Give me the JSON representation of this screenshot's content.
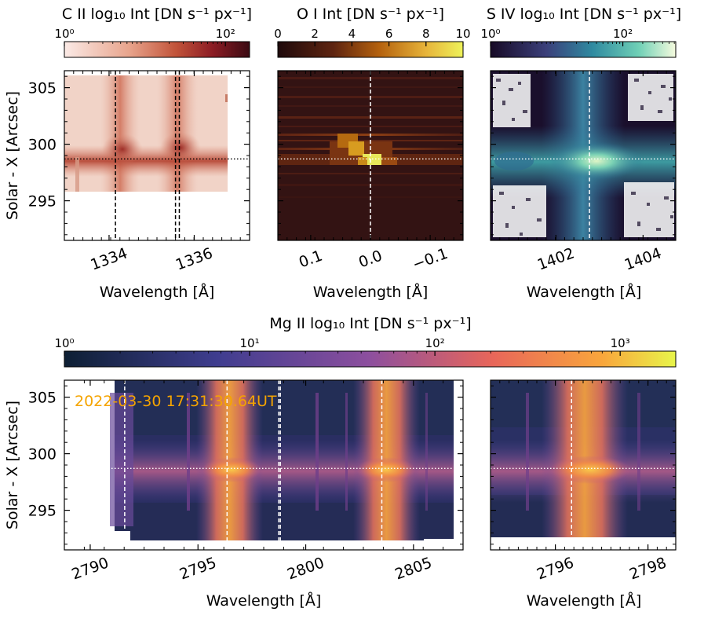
{
  "chart_data": [
    {
      "id": "cii",
      "type": "heatmap",
      "colorbar": {
        "title": "C II log₁₀ Int [DN s⁻¹ px⁻¹]",
        "ticks": [
          "10⁰",
          "10²"
        ],
        "tick_values": [
          0,
          2
        ],
        "range": [
          0,
          2.3
        ],
        "scale": "log10"
      },
      "xlabel": "Wavelength [Å]",
      "ylabel": "Solar - X [Arcsec]",
      "xlim": [
        1332.95,
        1337.3
      ],
      "ylim": [
        291.5,
        306.5
      ],
      "xticks": [
        1334,
        1336
      ],
      "yticks": [
        305,
        300,
        295
      ],
      "vlines": [
        1334.15,
        1335.56,
        1335.65
      ],
      "hline": 298.7
    },
    {
      "id": "oi",
      "type": "heatmap",
      "colorbar": {
        "title": "O I Int [DN s⁻¹ px⁻¹]",
        "ticks": [
          "0",
          "2",
          "4",
          "6",
          "8",
          "10"
        ],
        "tick_values": [
          0,
          2,
          4,
          6,
          8,
          10
        ],
        "range": [
          0,
          10
        ],
        "scale": "linear"
      },
      "xlabel": "Wavelength [Å]",
      "xlim": [
        0.155,
        -0.155
      ],
      "ylim": [
        291.5,
        306.5
      ],
      "xticks": [
        0.1,
        0.0,
        -0.1
      ],
      "xtick_labels": [
        "0.1",
        "0.0",
        "−0.1"
      ],
      "vlines": [
        0.0
      ],
      "hline": 298.7
    },
    {
      "id": "siv",
      "type": "heatmap",
      "colorbar": {
        "title": "S IV log₁₀ Int [DN s⁻¹ px⁻¹]",
        "ticks": [
          "10⁰",
          "10²"
        ],
        "tick_values": [
          0,
          2
        ],
        "range": [
          0,
          2.8
        ],
        "scale": "log10"
      },
      "xlabel": "Wavelength [Å]",
      "xlim": [
        1400.5,
        1404.75
      ],
      "ylim": [
        291.5,
        306.5
      ],
      "xticks": [
        1402,
        1404
      ],
      "vlines": [
        1402.77
      ],
      "hline": 298.7
    },
    {
      "id": "mgii",
      "type": "heatmap",
      "colorbar": {
        "title": "Mg II log₁₀ Int  [DN s⁻¹ px⁻¹]",
        "ticks": [
          "10⁰",
          "10¹",
          "10²",
          "10³"
        ],
        "tick_values": [
          0,
          1,
          2,
          3
        ],
        "range": [
          0,
          3.3
        ],
        "scale": "log10"
      },
      "annotation": "2022-03-30 17:31:30.64UT",
      "xlabel": "Wavelength [Å]",
      "ylabel": "Solar - X [Arcsec]",
      "xlim": [
        2788.8,
        2807.3
      ],
      "ylim": [
        291.5,
        306.5
      ],
      "xticks": [
        2790,
        2795,
        2800,
        2805
      ],
      "yticks": [
        305,
        300,
        295
      ],
      "vlines": [
        2791.6,
        2796.35,
        2798.75,
        2798.82,
        2803.53
      ],
      "hline": 298.7
    },
    {
      "id": "mgii_k",
      "type": "heatmap",
      "xlabel": "Wavelength [Å]",
      "xlim": [
        2794.6,
        2798.6
      ],
      "ylim": [
        291.5,
        306.5
      ],
      "xticks": [
        2796,
        2798
      ],
      "vlines": [
        2796.35
      ],
      "hline": 298.7
    }
  ]
}
